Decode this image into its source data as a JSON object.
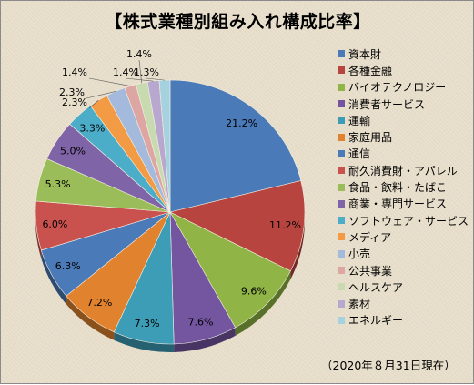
{
  "chart_data": {
    "type": "pie",
    "title": "【株式業種別組み入れ構成比率】",
    "note": "（2020年８月31日現在）",
    "unit": "%",
    "legend_position": "right",
    "slices": [
      {
        "label": "資本財",
        "value": 21.2,
        "color": "#4a7ab7"
      },
      {
        "label": "各種金融",
        "value": 11.2,
        "color": "#b7443f"
      },
      {
        "label": "バイオテクノロジー",
        "value": 9.6,
        "color": "#90b445"
      },
      {
        "label": "消費者サービス",
        "value": 7.6,
        "color": "#7456a0"
      },
      {
        "label": "運輸",
        "value": 7.3,
        "color": "#3d9db6"
      },
      {
        "label": "家庭用品",
        "value": 7.2,
        "color": "#e0822e"
      },
      {
        "label": "通信",
        "value": 6.3,
        "color": "#4a7ab7"
      },
      {
        "label": "耐久消費財・アパレル",
        "value": 6.0,
        "color": "#c9524e"
      },
      {
        "label": "食品・飲料・たばこ",
        "value": 5.3,
        "color": "#9bbd59"
      },
      {
        "label": "商業・専門サービス",
        "value": 5.0,
        "color": "#8064a8"
      },
      {
        "label": "ソフトウェア・サービス",
        "value": 3.3,
        "color": "#4cadc8"
      },
      {
        "label": "メディア",
        "value": 2.3,
        "color": "#f29a44"
      },
      {
        "label": "小売",
        "value": 2.3,
        "color": "#a3badd"
      },
      {
        "label": "公共事業",
        "value": 1.4,
        "color": "#dea6a3"
      },
      {
        "label": "ヘルスケア",
        "value": 1.4,
        "color": "#c8dbb0"
      },
      {
        "label": "素材",
        "value": 1.4,
        "color": "#b8a8cf"
      },
      {
        "label": "エネルギー",
        "value": 1.3,
        "color": "#a6d1df"
      }
    ]
  }
}
